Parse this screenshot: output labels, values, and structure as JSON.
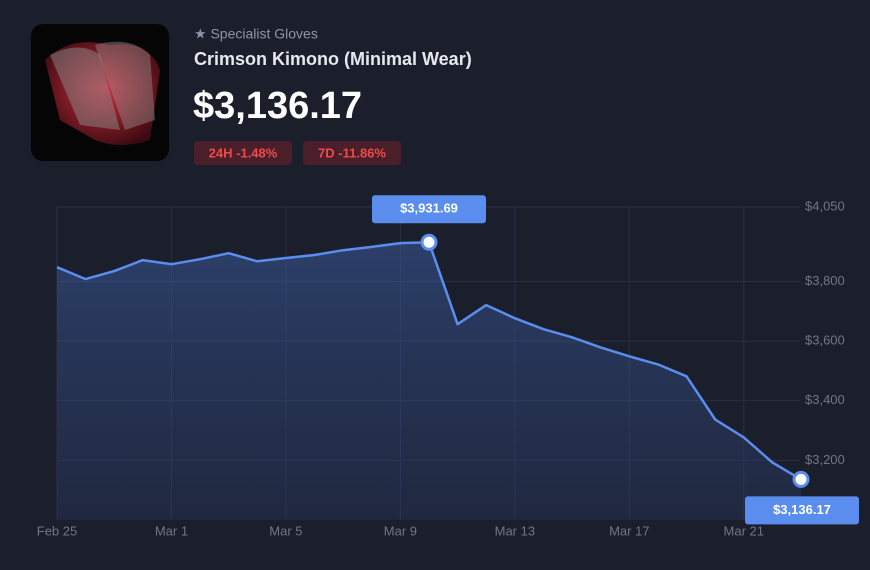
{
  "header": {
    "category": "★ Specialist Gloves",
    "name": "Crimson Kimono (Minimal Wear)",
    "price": "$3,136.17",
    "badges": [
      "24H -1.48%",
      "7D -11.86%"
    ]
  },
  "chart_data": {
    "type": "line",
    "categories": [
      "Feb 25",
      null,
      null,
      null,
      "Mar 1",
      null,
      null,
      null,
      "Mar 5",
      null,
      null,
      null,
      "Mar 9",
      null,
      null,
      null,
      "Mar 13",
      null,
      null,
      null,
      "Mar 17",
      null,
      null,
      null,
      "Mar 21",
      null,
      null
    ],
    "series": [
      {
        "color": "#5b8def",
        "values": [
          3848,
          3808,
          3835,
          3872,
          3858,
          3875,
          3895,
          3868,
          3879,
          3889,
          3905,
          3916,
          3929,
          3931.69,
          3657,
          3721,
          3677,
          3640,
          3613,
          3579,
          3549,
          3522,
          3482,
          3337,
          3277,
          3193,
          3136.17
        ]
      }
    ],
    "annotations": [
      {
        "value": 3931.69,
        "label": "$3,931.69"
      },
      {
        "value": 3136.17,
        "label": "$3,136.17"
      }
    ],
    "ylim": [
      3000,
      4050
    ],
    "yticks": [
      {
        "value": 3200,
        "label": "$3,200"
      },
      {
        "value": 3400,
        "label": "$3,400"
      },
      {
        "value": 3600,
        "label": "$3,600"
      },
      {
        "value": 3800,
        "label": "$3,800"
      },
      {
        "value": 4050,
        "label": "$4,050"
      }
    ],
    "grid": true
  }
}
